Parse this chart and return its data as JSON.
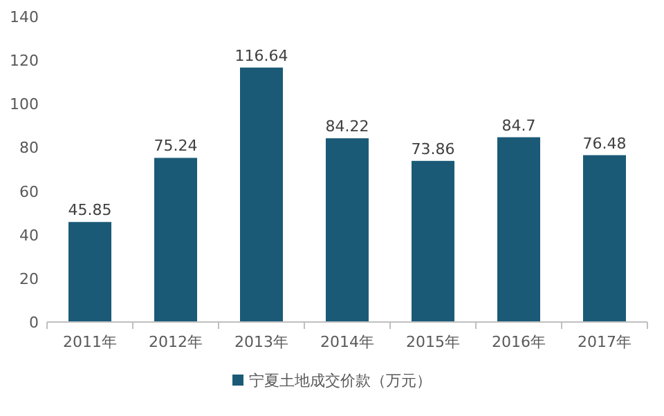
{
  "chart_data": {
    "type": "bar",
    "categories": [
      "2011年",
      "2012年",
      "2013年",
      "2014年",
      "2015年",
      "2016年",
      "2017年"
    ],
    "series": [
      {
        "name": "宁夏土地成交价款（万元）",
        "color": "#1b5a77",
        "values": [
          45.85,
          75.24,
          116.64,
          84.22,
          73.86,
          84.7,
          76.48
        ]
      }
    ],
    "ylim": [
      0,
      140
    ],
    "yticks": [
      0,
      20,
      40,
      60,
      80,
      100,
      120,
      140
    ],
    "data_labels": true,
    "legend": "bottom",
    "grid": false
  }
}
